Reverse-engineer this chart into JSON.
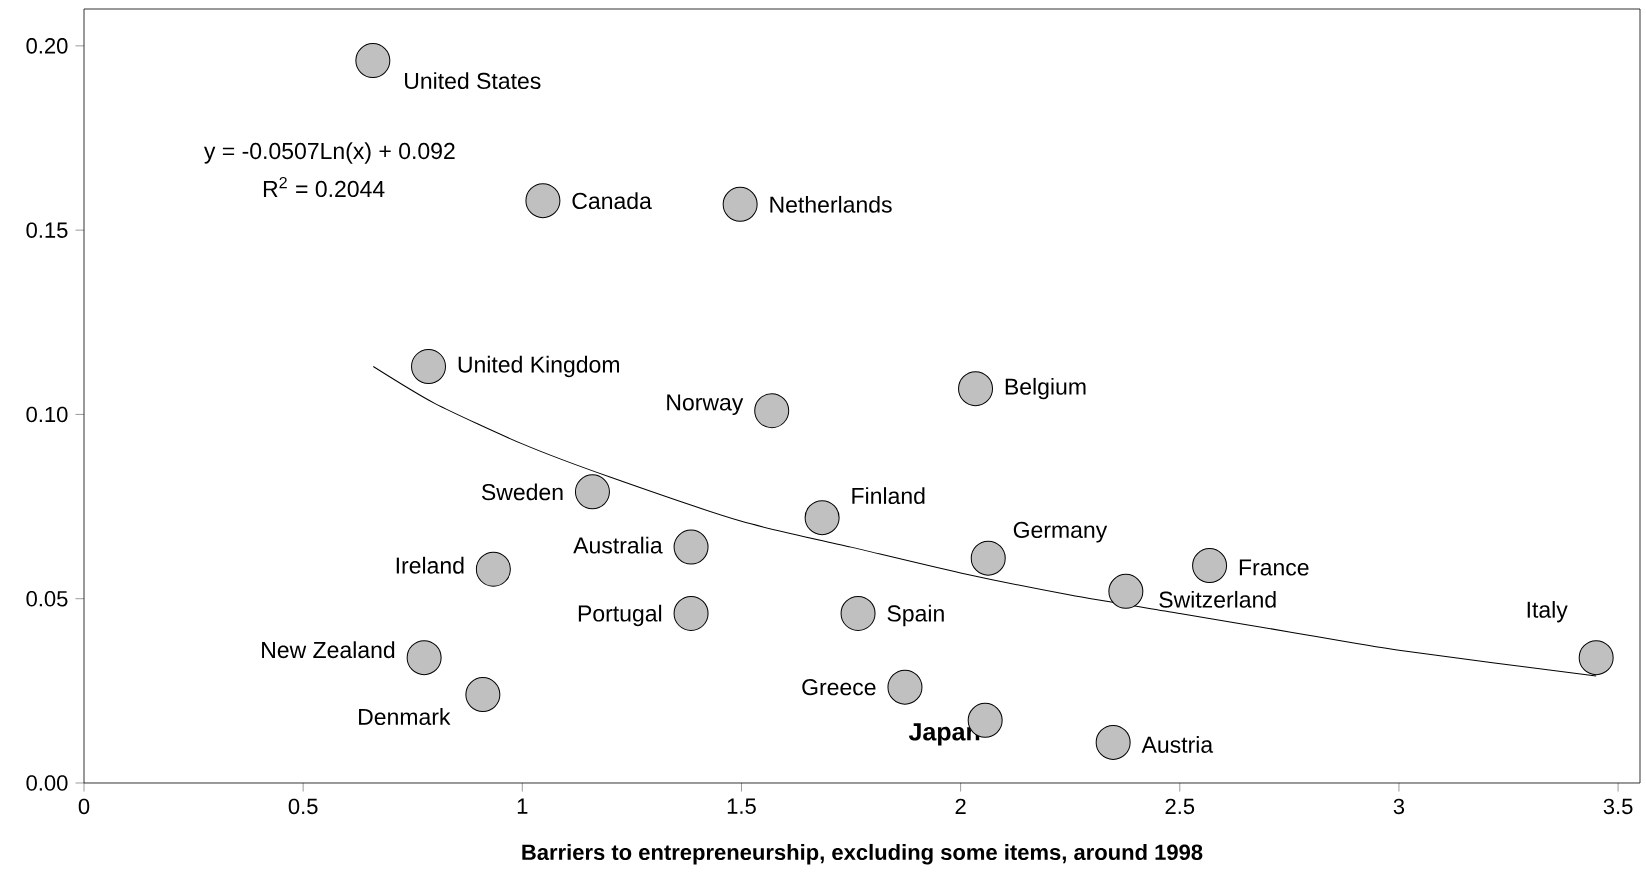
{
  "chart_data": {
    "type": "scatter",
    "xlabel": "Barriers to entrepreneurship, excluding some items, around 1998",
    "xlim": [
      0,
      3.55
    ],
    "ylim": [
      0,
      0.21
    ],
    "xticks": [
      0,
      0.5,
      1,
      1.5,
      2,
      2.5,
      3,
      3.5
    ],
    "yticks": [
      {
        "value": 0,
        "label": "0.00"
      },
      {
        "value": 0.05,
        "label": "0.05"
      },
      {
        "value": 0.1,
        "label": "0.10"
      },
      {
        "value": 0.15,
        "label": "0.15"
      },
      {
        "value": 0.2,
        "label": "0.20"
      }
    ],
    "series": [
      {
        "color": "#c0c0c0",
        "x": [
          0.659,
          1.047,
          1.497,
          0.786,
          1.569,
          2.034,
          1.16,
          1.684,
          1.385,
          2.063,
          2.568,
          0.934,
          2.377,
          1.385,
          1.766,
          3.45,
          0.776,
          0.91,
          1.873,
          2.056,
          2.348
        ],
        "values": [
          0.196,
          0.158,
          0.157,
          0.113,
          0.101,
          0.107,
          0.079,
          0.072,
          0.064,
          0.061,
          0.059,
          0.058,
          0.052,
          0.046,
          0.046,
          0.034,
          0.034,
          0.024,
          0.026,
          0.017,
          0.011
        ]
      },
      {
        "type": "line",
        "color": "#000000",
        "x": [
          0.66,
          0.8,
          1,
          1.2,
          1.5,
          1.75,
          2,
          2.25,
          2.5,
          2.75,
          3,
          3.45
        ],
        "values": [
          0.113,
          0.103,
          0.092,
          0.083,
          0.071,
          0.064,
          0.057,
          0.051,
          0.046,
          0.041,
          0.036,
          0.029
        ]
      }
    ],
    "annotations": [
      "y = -0.0507Ln(x) + 0.092",
      "R$^{2}$ = 0.2044",
      {
        "text": "United States",
        "x": 0.659,
        "y": 0.196
      },
      {
        "text": "Canada",
        "x": 1.047,
        "y": 0.158
      },
      {
        "text": "Netherlands",
        "x": 1.497,
        "y": 0.157
      },
      {
        "text": "United Kingdom",
        "x": 0.786,
        "y": 0.113
      },
      {
        "text": "Norway",
        "x": 1.569,
        "y": 0.101
      },
      {
        "text": "Belgium",
        "x": 2.034,
        "y": 0.107
      },
      {
        "text": "Sweden",
        "x": 1.16,
        "y": 0.079
      },
      {
        "text": "Finland",
        "x": 1.684,
        "y": 0.072
      },
      {
        "text": "Australia",
        "x": 1.385,
        "y": 0.064
      },
      {
        "text": "Germany",
        "x": 2.063,
        "y": 0.061
      },
      {
        "text": "France",
        "x": 2.568,
        "y": 0.059
      },
      {
        "text": "Ireland",
        "x": 0.934,
        "y": 0.058
      },
      {
        "text": "Switzerland",
        "x": 2.377,
        "y": 0.052
      },
      {
        "text": "Portugal",
        "x": 1.385,
        "y": 0.046
      },
      {
        "text": "Spain",
        "x": 1.766,
        "y": 0.046
      },
      {
        "text": "Italy",
        "x": 3.45,
        "y": 0.034
      },
      {
        "text": "New Zealand",
        "x": 0.776,
        "y": 0.034
      },
      {
        "text": "Denmark",
        "x": 0.91,
        "y": 0.024
      },
      {
        "text": "Greece",
        "x": 1.873,
        "y": 0.026
      },
      {
        "text": "Japan",
        "x": 2.056,
        "y": 0.017
      },
      {
        "text": "Austria",
        "x": 2.348,
        "y": 0.011
      }
    ]
  }
}
